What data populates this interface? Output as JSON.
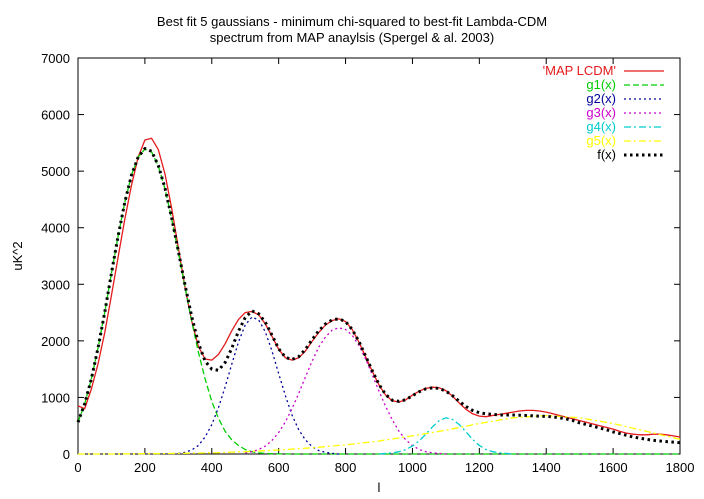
{
  "chart_data": {
    "type": "line",
    "title_lines": [
      "Best fit 5 gaussians - minimum chi-squared to best-fit Lambda-CDM",
      "spectrum from MAP anaylsis (Spergel & al. 2003)"
    ],
    "xlabel": "l",
    "ylabel": "uK^2",
    "xlim": [
      0,
      1800
    ],
    "ylim": [
      0,
      7000
    ],
    "xticks": [
      0,
      200,
      400,
      600,
      800,
      1000,
      1200,
      1400,
      1600,
      1800
    ],
    "yticks": [
      0,
      1000,
      2000,
      3000,
      4000,
      5000,
      6000,
      7000
    ],
    "x_tick_labels": [
      "0",
      "200",
      "400",
      "600",
      "800",
      "1000",
      "1200",
      "1400",
      "1600",
      "1800"
    ],
    "y_tick_labels": [
      "0",
      "1000",
      "2000",
      "3000",
      "4000",
      "5000",
      "6000",
      "7000"
    ],
    "grid": false,
    "legend_position": "top-right",
    "series": [
      {
        "name": "'MAP LCDM'",
        "color": "#e41a1c",
        "style": "solid",
        "x": [
          0,
          20,
          40,
          60,
          80,
          100,
          120,
          140,
          160,
          180,
          200,
          220,
          240,
          260,
          280,
          300,
          320,
          340,
          360,
          380,
          400,
          420,
          440,
          460,
          480,
          500,
          520,
          540,
          560,
          580,
          600,
          620,
          640,
          660,
          680,
          700,
          720,
          740,
          760,
          780,
          800,
          820,
          840,
          860,
          880,
          900,
          920,
          940,
          960,
          980,
          1000,
          1020,
          1040,
          1060,
          1080,
          1100,
          1120,
          1140,
          1160,
          1180,
          1200,
          1220,
          1240,
          1260,
          1280,
          1300,
          1320,
          1340,
          1360,
          1380,
          1400,
          1420,
          1440,
          1460,
          1480,
          1500,
          1520,
          1540,
          1560,
          1580,
          1600,
          1620,
          1640,
          1660,
          1680,
          1700,
          1720,
          1740,
          1760,
          1780,
          1800
        ],
        "y": [
          850,
          800,
          1150,
          1600,
          2150,
          2800,
          3480,
          4150,
          4750,
          5250,
          5550,
          5580,
          5380,
          4950,
          4350,
          3650,
          2950,
          2350,
          1900,
          1680,
          1660,
          1760,
          1950,
          2180,
          2380,
          2500,
          2520,
          2460,
          2300,
          2080,
          1850,
          1700,
          1660,
          1700,
          1820,
          1990,
          2150,
          2280,
          2360,
          2390,
          2340,
          2200,
          1980,
          1720,
          1460,
          1220,
          1040,
          940,
          920,
          960,
          1040,
          1110,
          1160,
          1180,
          1170,
          1120,
          1020,
          900,
          790,
          710,
          670,
          660,
          680,
          700,
          720,
          740,
          760,
          770,
          770,
          760,
          740,
          710,
          680,
          650,
          620,
          590,
          560,
          530,
          500,
          470,
          440,
          400,
          370,
          350,
          340,
          340,
          350,
          350,
          340,
          320,
          300
        ]
      },
      {
        "name": "g1(x)",
        "color": "#00cc00",
        "style": "dashed",
        "x": [
          0,
          20,
          40,
          60,
          80,
          100,
          120,
          140,
          160,
          180,
          200,
          220,
          240,
          260,
          280,
          300,
          320,
          340,
          360,
          380,
          400,
          420,
          440,
          460,
          480,
          500,
          520,
          540,
          560,
          580,
          600,
          620,
          640,
          660,
          680,
          700,
          720,
          740,
          760,
          780,
          800,
          820,
          840,
          860,
          880,
          900,
          920,
          940,
          960,
          980,
          1000,
          1020,
          1040,
          1060,
          1080,
          1100,
          1120,
          1140,
          1160,
          1180,
          1200,
          1220,
          1240,
          1260,
          1280,
          1300,
          1320,
          1340,
          1360,
          1380,
          1400,
          1420,
          1440,
          1460,
          1480,
          1500,
          1520,
          1540,
          1560,
          1580,
          1600,
          1620,
          1640,
          1660,
          1680,
          1700,
          1720,
          1740,
          1760,
          1780,
          1800
        ],
        "y": [
          560,
          890,
          1330,
          1880,
          2510,
          3190,
          3850,
          4450,
          4930,
          5250,
          5390,
          5340,
          5090,
          4690,
          4160,
          3570,
          2950,
          2350,
          1800,
          1330,
          930,
          630,
          400,
          250,
          150,
          80,
          40,
          20,
          10,
          5,
          2,
          1,
          0,
          0,
          0,
          0,
          0,
          0,
          0,
          0,
          0,
          0,
          0,
          0,
          0,
          0,
          0,
          0,
          0,
          0,
          0,
          0,
          0,
          0,
          0,
          0,
          0,
          0,
          0,
          0,
          0,
          0,
          0,
          0,
          0,
          0,
          0,
          0,
          0,
          0,
          0,
          0,
          0,
          0,
          0,
          0,
          0,
          0,
          0,
          0,
          0,
          0,
          0,
          0,
          0,
          0,
          0,
          0,
          0,
          0,
          0
        ]
      },
      {
        "name": "g2(x)",
        "color": "#000099",
        "style": "dotted",
        "x": [
          300,
          320,
          340,
          360,
          380,
          400,
          420,
          440,
          460,
          480,
          500,
          520,
          540,
          560,
          580,
          600,
          620,
          640,
          660,
          680,
          700,
          720,
          740,
          760,
          780
        ],
        "y": [
          10,
          30,
          70,
          150,
          300,
          520,
          820,
          1190,
          1590,
          1980,
          2280,
          2420,
          2370,
          2160,
          1820,
          1420,
          1030,
          690,
          430,
          250,
          130,
          60,
          30,
          10,
          0
        ]
      },
      {
        "name": "g3(x)",
        "color": "#cc00cc",
        "style": "dotted",
        "x": [
          500,
          520,
          540,
          560,
          580,
          600,
          620,
          640,
          660,
          680,
          700,
          720,
          740,
          760,
          780,
          800,
          820,
          840,
          860,
          880,
          900,
          920,
          940,
          960,
          980,
          1000,
          1020,
          1040,
          1060,
          1080,
          1100
        ],
        "y": [
          20,
          40,
          80,
          140,
          240,
          380,
          570,
          800,
          1070,
          1360,
          1640,
          1890,
          2070,
          2190,
          2230,
          2200,
          2100,
          1920,
          1680,
          1400,
          1110,
          840,
          600,
          400,
          250,
          150,
          80,
          40,
          20,
          10,
          0
        ]
      },
      {
        "name": "g4(x)",
        "color": "#00cccc",
        "style": "dashdot",
        "x": [
          900,
          920,
          940,
          960,
          980,
          1000,
          1020,
          1040,
          1060,
          1080,
          1100,
          1120,
          1140,
          1160,
          1180,
          1200,
          1220,
          1240,
          1260,
          1280,
          1300
        ],
        "y": [
          0,
          10,
          20,
          40,
          80,
          140,
          230,
          350,
          480,
          590,
          640,
          610,
          520,
          390,
          260,
          150,
          80,
          40,
          20,
          10,
          0
        ]
      },
      {
        "name": "g5(x)",
        "color": "#ffff00",
        "style": "dashdot",
        "x": [
          0,
          100,
          200,
          300,
          400,
          500,
          600,
          700,
          800,
          900,
          1000,
          1100,
          1200,
          1300,
          1400,
          1500,
          1600,
          1700,
          1800
        ],
        "y": [
          0,
          0,
          5,
          10,
          20,
          40,
          70,
          110,
          160,
          230,
          320,
          420,
          540,
          640,
          680,
          640,
          540,
          400,
          260
        ]
      },
      {
        "name": "f(x)",
        "color": "#000000",
        "style": "dotted-bold",
        "x": [
          0,
          20,
          40,
          60,
          80,
          100,
          120,
          140,
          160,
          180,
          200,
          220,
          240,
          260,
          280,
          300,
          320,
          340,
          360,
          380,
          400,
          420,
          440,
          460,
          480,
          500,
          520,
          540,
          560,
          580,
          600,
          620,
          640,
          660,
          680,
          700,
          720,
          740,
          760,
          780,
          800,
          820,
          840,
          860,
          880,
          900,
          920,
          940,
          960,
          980,
          1000,
          1020,
          1040,
          1060,
          1080,
          1100,
          1120,
          1140,
          1160,
          1180,
          1200,
          1220,
          1240,
          1260,
          1280,
          1300,
          1320,
          1340,
          1360,
          1380,
          1400,
          1420,
          1440,
          1460,
          1480,
          1500,
          1520,
          1540,
          1560,
          1580,
          1600,
          1620,
          1640,
          1660,
          1680,
          1700,
          1720,
          1740,
          1760,
          1780,
          1800
        ],
        "y": [
          560,
          890,
          1330,
          1880,
          2510,
          3190,
          3850,
          4450,
          4930,
          5250,
          5400,
          5350,
          5100,
          4700,
          4180,
          3590,
          2990,
          2430,
          1960,
          1640,
          1500,
          1480,
          1620,
          1870,
          2170,
          2410,
          2530,
          2480,
          2330,
          2100,
          1860,
          1710,
          1670,
          1720,
          1850,
          2020,
          2180,
          2300,
          2370,
          2390,
          2340,
          2200,
          1990,
          1730,
          1470,
          1230,
          1050,
          950,
          930,
          960,
          1030,
          1100,
          1150,
          1170,
          1160,
          1110,
          1030,
          930,
          840,
          770,
          730,
          710,
          700,
          690,
          690,
          690,
          685,
          680,
          675,
          670,
          665,
          655,
          640,
          620,
          590,
          550,
          520,
          490,
          460,
          430,
          390,
          360,
          330,
          300,
          280,
          260,
          240,
          230,
          220,
          210,
          200
        ]
      }
    ]
  }
}
